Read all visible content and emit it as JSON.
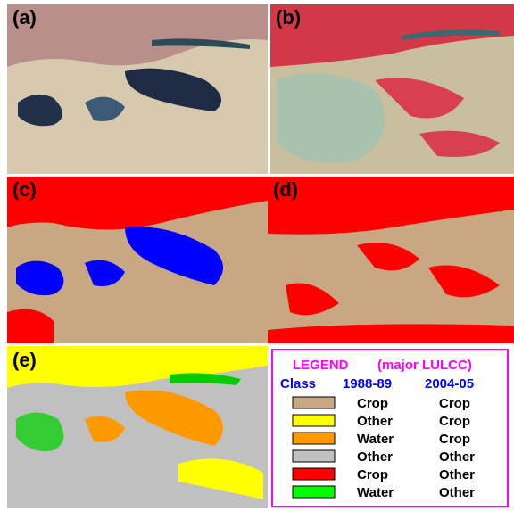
{
  "panels": [
    {
      "label": "(a)"
    },
    {
      "label": "(b)"
    },
    {
      "label": "(c)"
    },
    {
      "label": "(d)"
    },
    {
      "label": "(e)"
    }
  ],
  "legend": {
    "title": "LEGEND",
    "subtitle": "(major LULCC)",
    "headers": [
      "Class",
      "1988-89",
      "2004-05"
    ],
    "rows": [
      {
        "color": "#c8a882",
        "from": "Crop",
        "to": "Crop"
      },
      {
        "color": "#ffff00",
        "from": "Other",
        "to": "Crop"
      },
      {
        "color": "#ff9900",
        "from": "Water",
        "to": "Crop"
      },
      {
        "color": "#c0c0c0",
        "from": "Other",
        "to": "Other"
      },
      {
        "color": "#ff0000",
        "from": "Crop",
        "to": "Other"
      },
      {
        "color": "#00ff00",
        "from": "Water",
        "to": "Other"
      }
    ]
  }
}
